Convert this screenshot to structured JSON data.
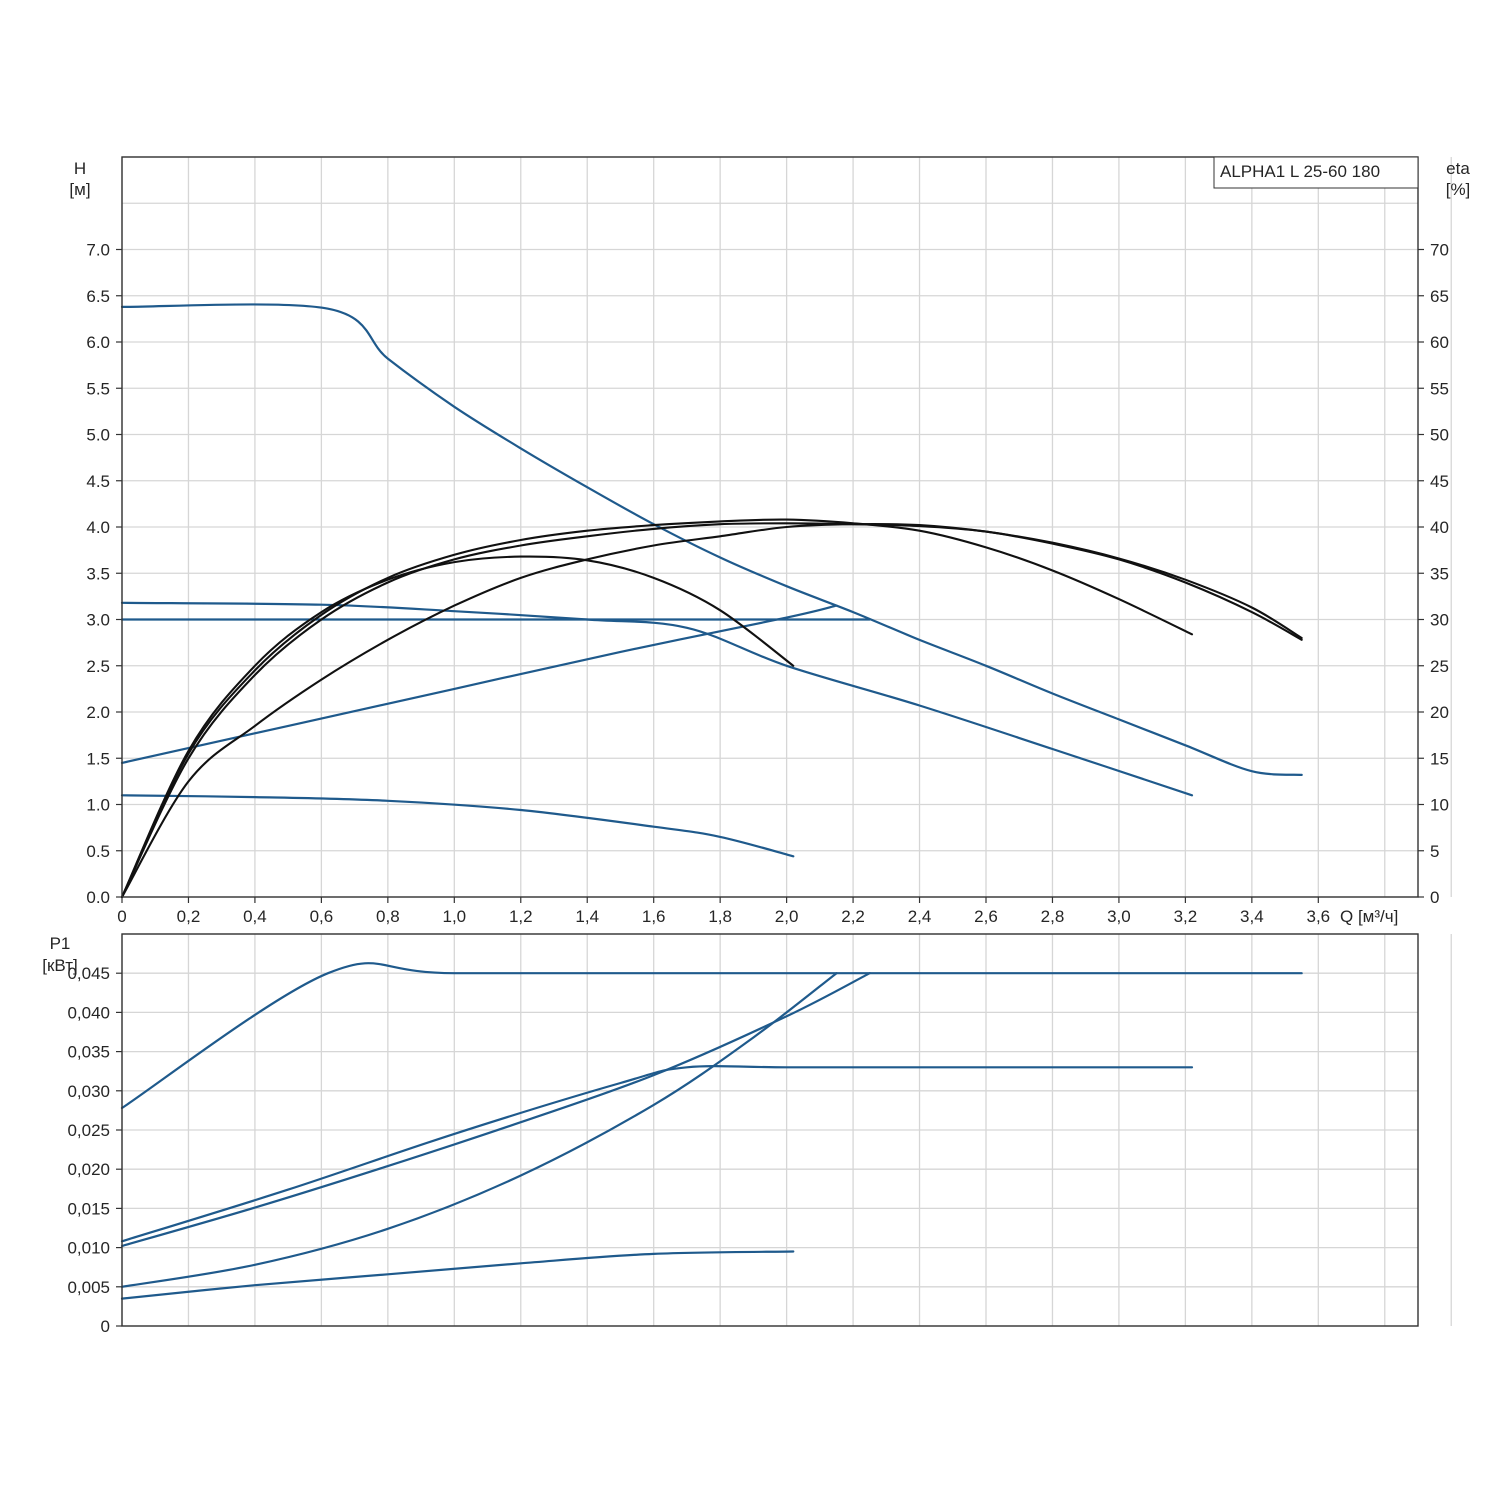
{
  "chart_data": [
    {
      "type": "line",
      "title": "ALPHA1 L 25-60 180",
      "xlabel": "Q [м³/ч]",
      "ylabel_left": [
        "H",
        "[м]"
      ],
      "ylabel_right": [
        "eta",
        "[%]"
      ],
      "xlim": [
        0,
        3.9
      ],
      "ylim_left": [
        0,
        8.0
      ],
      "ylim_right": [
        0,
        80
      ],
      "x_ticks": [
        "0",
        "0,2",
        "0,4",
        "0,6",
        "0,8",
        "1,0",
        "1,2",
        "1,4",
        "1,6",
        "1,8",
        "2,0",
        "2,2",
        "2,4",
        "2,6",
        "2,8",
        "3,0",
        "3,2",
        "3,4",
        "3,6"
      ],
      "y_ticks_left": [
        "0.0",
        "0.5",
        "1.0",
        "1.5",
        "2.0",
        "2.5",
        "3.0",
        "3.5",
        "4.0",
        "4.5",
        "5.0",
        "5.5",
        "6.0",
        "6.5",
        "7.0"
      ],
      "y_ticks_right": [
        "0",
        "5",
        "10",
        "15",
        "20",
        "25",
        "30",
        "35",
        "40",
        "45",
        "50",
        "55",
        "60",
        "65",
        "70"
      ],
      "grid": true,
      "colors": {
        "head": "#1f5a8c",
        "efficiency": "#111111"
      },
      "series": [
        {
          "kind": "head",
          "axis": "left",
          "x": [
            0,
            0.62,
            0.8,
            1.0,
            1.2,
            1.4,
            1.6,
            1.8,
            2.0,
            2.2,
            2.4,
            2.6,
            2.8,
            3.0,
            3.2,
            3.4,
            3.55
          ],
          "y": [
            6.38,
            6.36,
            5.82,
            5.3,
            4.85,
            4.43,
            4.03,
            3.67,
            3.36,
            3.08,
            2.78,
            2.5,
            2.2,
            1.92,
            1.64,
            1.36,
            1.32
          ]
        },
        {
          "kind": "head",
          "axis": "left",
          "x": [
            0,
            0.6,
            1.0,
            1.4,
            1.7,
            2.0,
            2.4,
            2.8,
            3.22
          ],
          "y": [
            3.18,
            3.16,
            3.09,
            3.0,
            2.91,
            2.5,
            2.07,
            1.6,
            1.1
          ]
        },
        {
          "kind": "head",
          "axis": "left",
          "x": [
            0,
            0.5,
            1.0,
            1.5,
            2.0,
            2.25
          ],
          "y": [
            3.0,
            3.0,
            3.0,
            3.0,
            3.0,
            3.0
          ]
        },
        {
          "kind": "head",
          "axis": "left",
          "x": [
            0,
            0.5,
            1.0,
            1.5,
            2.0,
            2.15
          ],
          "y": [
            1.45,
            1.85,
            2.25,
            2.65,
            3.02,
            3.15
          ]
        },
        {
          "kind": "head",
          "axis": "left",
          "x": [
            0,
            0.4,
            0.8,
            1.2,
            1.6,
            1.8,
            2.02
          ],
          "y": [
            1.1,
            1.08,
            1.04,
            0.94,
            0.76,
            0.65,
            0.44
          ]
        },
        {
          "kind": "efficiency",
          "axis": "right",
          "x": [
            0,
            0.2,
            0.4,
            0.6,
            0.8,
            1.0,
            1.2,
            1.4,
            1.6,
            1.8,
            2.0,
            2.2,
            2.4,
            2.6,
            2.8,
            3.0,
            3.2,
            3.4,
            3.55
          ],
          "y": [
            0,
            15,
            24,
            30,
            34,
            36.5,
            38,
            39,
            39.8,
            40.3,
            40.4,
            40.3,
            40.1,
            39.5,
            38.2,
            36.5,
            34,
            30.8,
            27.8
          ]
        },
        {
          "kind": "efficiency",
          "axis": "right",
          "x": [
            0,
            0.2,
            0.4,
            0.6,
            0.8,
            1.0,
            1.2,
            1.4,
            1.6,
            1.8,
            2.0,
            2.2,
            2.4,
            2.6,
            2.8,
            3.0,
            3.22
          ],
          "y": [
            0,
            15.5,
            24.5,
            30.5,
            34.5,
            37,
            38.6,
            39.6,
            40.2,
            40.6,
            40.8,
            40.4,
            39.6,
            37.8,
            35.3,
            32.2,
            28.4
          ]
        },
        {
          "kind": "efficiency",
          "axis": "right",
          "x": [
            0,
            0.2,
            0.4,
            0.6,
            0.8,
            1.0,
            1.2,
            1.4,
            1.6,
            1.8,
            2.02
          ],
          "y": [
            0,
            15.8,
            25,
            30.8,
            34.3,
            36.2,
            36.8,
            36.4,
            34.5,
            31,
            25
          ]
        },
        {
          "kind": "efficiency",
          "axis": "right",
          "x": [
            0,
            0.2,
            0.4,
            0.6,
            0.8,
            1.0,
            1.2,
            1.4,
            1.6,
            1.8,
            2.0,
            2.2,
            2.4,
            2.6,
            2.8,
            3.0,
            3.2,
            3.4,
            3.55
          ],
          "y": [
            0,
            12.5,
            18.5,
            23.5,
            27.8,
            31.5,
            34.5,
            36.5,
            38,
            39,
            40,
            40.3,
            40.2,
            39.5,
            38.3,
            36.6,
            34.3,
            31.3,
            28
          ]
        }
      ]
    },
    {
      "type": "line",
      "xlabel": "",
      "ylabel": [
        "P1",
        "[кВт]"
      ],
      "xlim": [
        0,
        3.9
      ],
      "ylim": [
        0,
        0.05
      ],
      "y_ticks": [
        "0",
        "0,005",
        "0,010",
        "0,015",
        "0,020",
        "0,025",
        "0,030",
        "0,035",
        "0,040",
        "0,045"
      ],
      "grid": true,
      "color": "#1f5a8c",
      "series": [
        {
          "x": [
            0,
            0.62,
            1.0,
            2.0,
            3.0,
            3.55
          ],
          "y": [
            0.0278,
            0.045,
            0.045,
            0.045,
            0.045,
            0.045
          ]
        },
        {
          "x": [
            0,
            0.5,
            1.0,
            1.5,
            1.7,
            2.0,
            2.5,
            3.0,
            3.22
          ],
          "y": [
            0.0108,
            0.0174,
            0.0245,
            0.031,
            0.033,
            0.033,
            0.033,
            0.033,
            0.033
          ]
        },
        {
          "x": [
            0,
            0.4,
            0.8,
            1.2,
            1.6,
            2.0,
            2.25
          ],
          "y": [
            0.0102,
            0.0151,
            0.0204,
            0.026,
            0.032,
            0.0395,
            0.045
          ]
        },
        {
          "x": [
            0,
            0.4,
            0.8,
            1.2,
            1.6,
            1.9,
            2.15
          ],
          "y": [
            0.005,
            0.0078,
            0.0124,
            0.0192,
            0.0282,
            0.0368,
            0.045
          ]
        },
        {
          "x": [
            0,
            0.4,
            0.8,
            1.2,
            1.6,
            2.02
          ],
          "y": [
            0.0035,
            0.0052,
            0.0066,
            0.008,
            0.0092,
            0.0095
          ]
        }
      ]
    }
  ]
}
